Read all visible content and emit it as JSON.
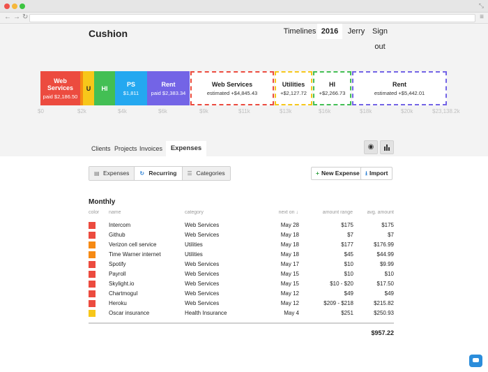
{
  "colors": {
    "web_services": "#ec4b3f",
    "utilities": "#f7c71a",
    "health_insurance": "#43bf54",
    "ps": "#24a8f0",
    "rent": "#7364e6",
    "orange": "#f68a14"
  },
  "app": {
    "title": "Cushion"
  },
  "topnav": {
    "timelines": "Timelines",
    "year": "2016",
    "user": "Jerry",
    "signout": "Sign out"
  },
  "budget_bar": {
    "paid": [
      {
        "title": "Web Services",
        "sub": "paid $2,186.50"
      },
      {
        "title": "U",
        "sub": ""
      },
      {
        "title": "HI",
        "sub": ""
      },
      {
        "title": "PS",
        "sub": "$1,811"
      },
      {
        "title": "Rent",
        "sub": "paid $2,383.34"
      }
    ],
    "estimated": [
      {
        "title": "Web Services",
        "sub": "estimated +$4,845.43"
      },
      {
        "title": "Utilities",
        "sub": "+$2,127.72"
      },
      {
        "title": "HI",
        "sub": "+$2,266.73"
      },
      {
        "title": "Rent",
        "sub": "estimated +$5,442.01"
      }
    ],
    "ticks": [
      "$0",
      "$2k",
      "$4k",
      "$6k",
      "$9k",
      "$11k",
      "$13k",
      "$16k",
      "$18k",
      "$20k",
      "$23,138.2k"
    ]
  },
  "subtabs": {
    "clients": "Clients",
    "projects": "Projects",
    "invoices": "Invoices",
    "expenses": "Expenses"
  },
  "view_icons": {
    "eye": "eye-icon",
    "chart": "bar-chart-icon"
  },
  "segmented": {
    "expenses": "Expenses",
    "recurring": "Recurring",
    "categories": "Categories"
  },
  "actions": {
    "new_expense": "New Expense",
    "import": "Import"
  },
  "section": {
    "title": "Monthly"
  },
  "table": {
    "headers": {
      "color": "color",
      "name": "name",
      "category": "category",
      "next_on": "next on ↓",
      "amount_range": "amount range",
      "avg_amount": "avg. amount"
    },
    "rows": [
      {
        "color": "#ec4b3f",
        "name": "Intercom",
        "category": "Web Services",
        "next_on": "May 28",
        "amount_range": "$175",
        "avg_amount": "$175"
      },
      {
        "color": "#ec4b3f",
        "name": "Github",
        "category": "Web Services",
        "next_on": "May 18",
        "amount_range": "$7",
        "avg_amount": "$7"
      },
      {
        "color": "#f68a14",
        "name": "Verizon cell service",
        "category": "Utilities",
        "next_on": "May 18",
        "amount_range": "$177",
        "avg_amount": "$176.99"
      },
      {
        "color": "#f68a14",
        "name": "Time Warner internet",
        "category": "Utilities",
        "next_on": "May 18",
        "amount_range": "$45",
        "avg_amount": "$44.99"
      },
      {
        "color": "#ec4b3f",
        "name": "Spotify",
        "category": "Web Services",
        "next_on": "May 17",
        "amount_range": "$10",
        "avg_amount": "$9.99"
      },
      {
        "color": "#ec4b3f",
        "name": "Payroll",
        "category": "Web Services",
        "next_on": "May 15",
        "amount_range": "$10",
        "avg_amount": "$10"
      },
      {
        "color": "#ec4b3f",
        "name": "Skylight.io",
        "category": "Web Services",
        "next_on": "May 15",
        "amount_range": "$10 - $20",
        "avg_amount": "$17.50"
      },
      {
        "color": "#ec4b3f",
        "name": "Chartmogul",
        "category": "Web Services",
        "next_on": "May 12",
        "amount_range": "$49",
        "avg_amount": "$49"
      },
      {
        "color": "#ec4b3f",
        "name": "Heroku",
        "category": "Web Services",
        "next_on": "May 12",
        "amount_range": "$209 - $218",
        "avg_amount": "$215.82"
      },
      {
        "color": "#f7c71a",
        "name": "Oscar insurance",
        "category": "Health Insurance",
        "next_on": "May 4",
        "amount_range": "$251",
        "avg_amount": "$250.93"
      }
    ],
    "total": "$957.22"
  }
}
